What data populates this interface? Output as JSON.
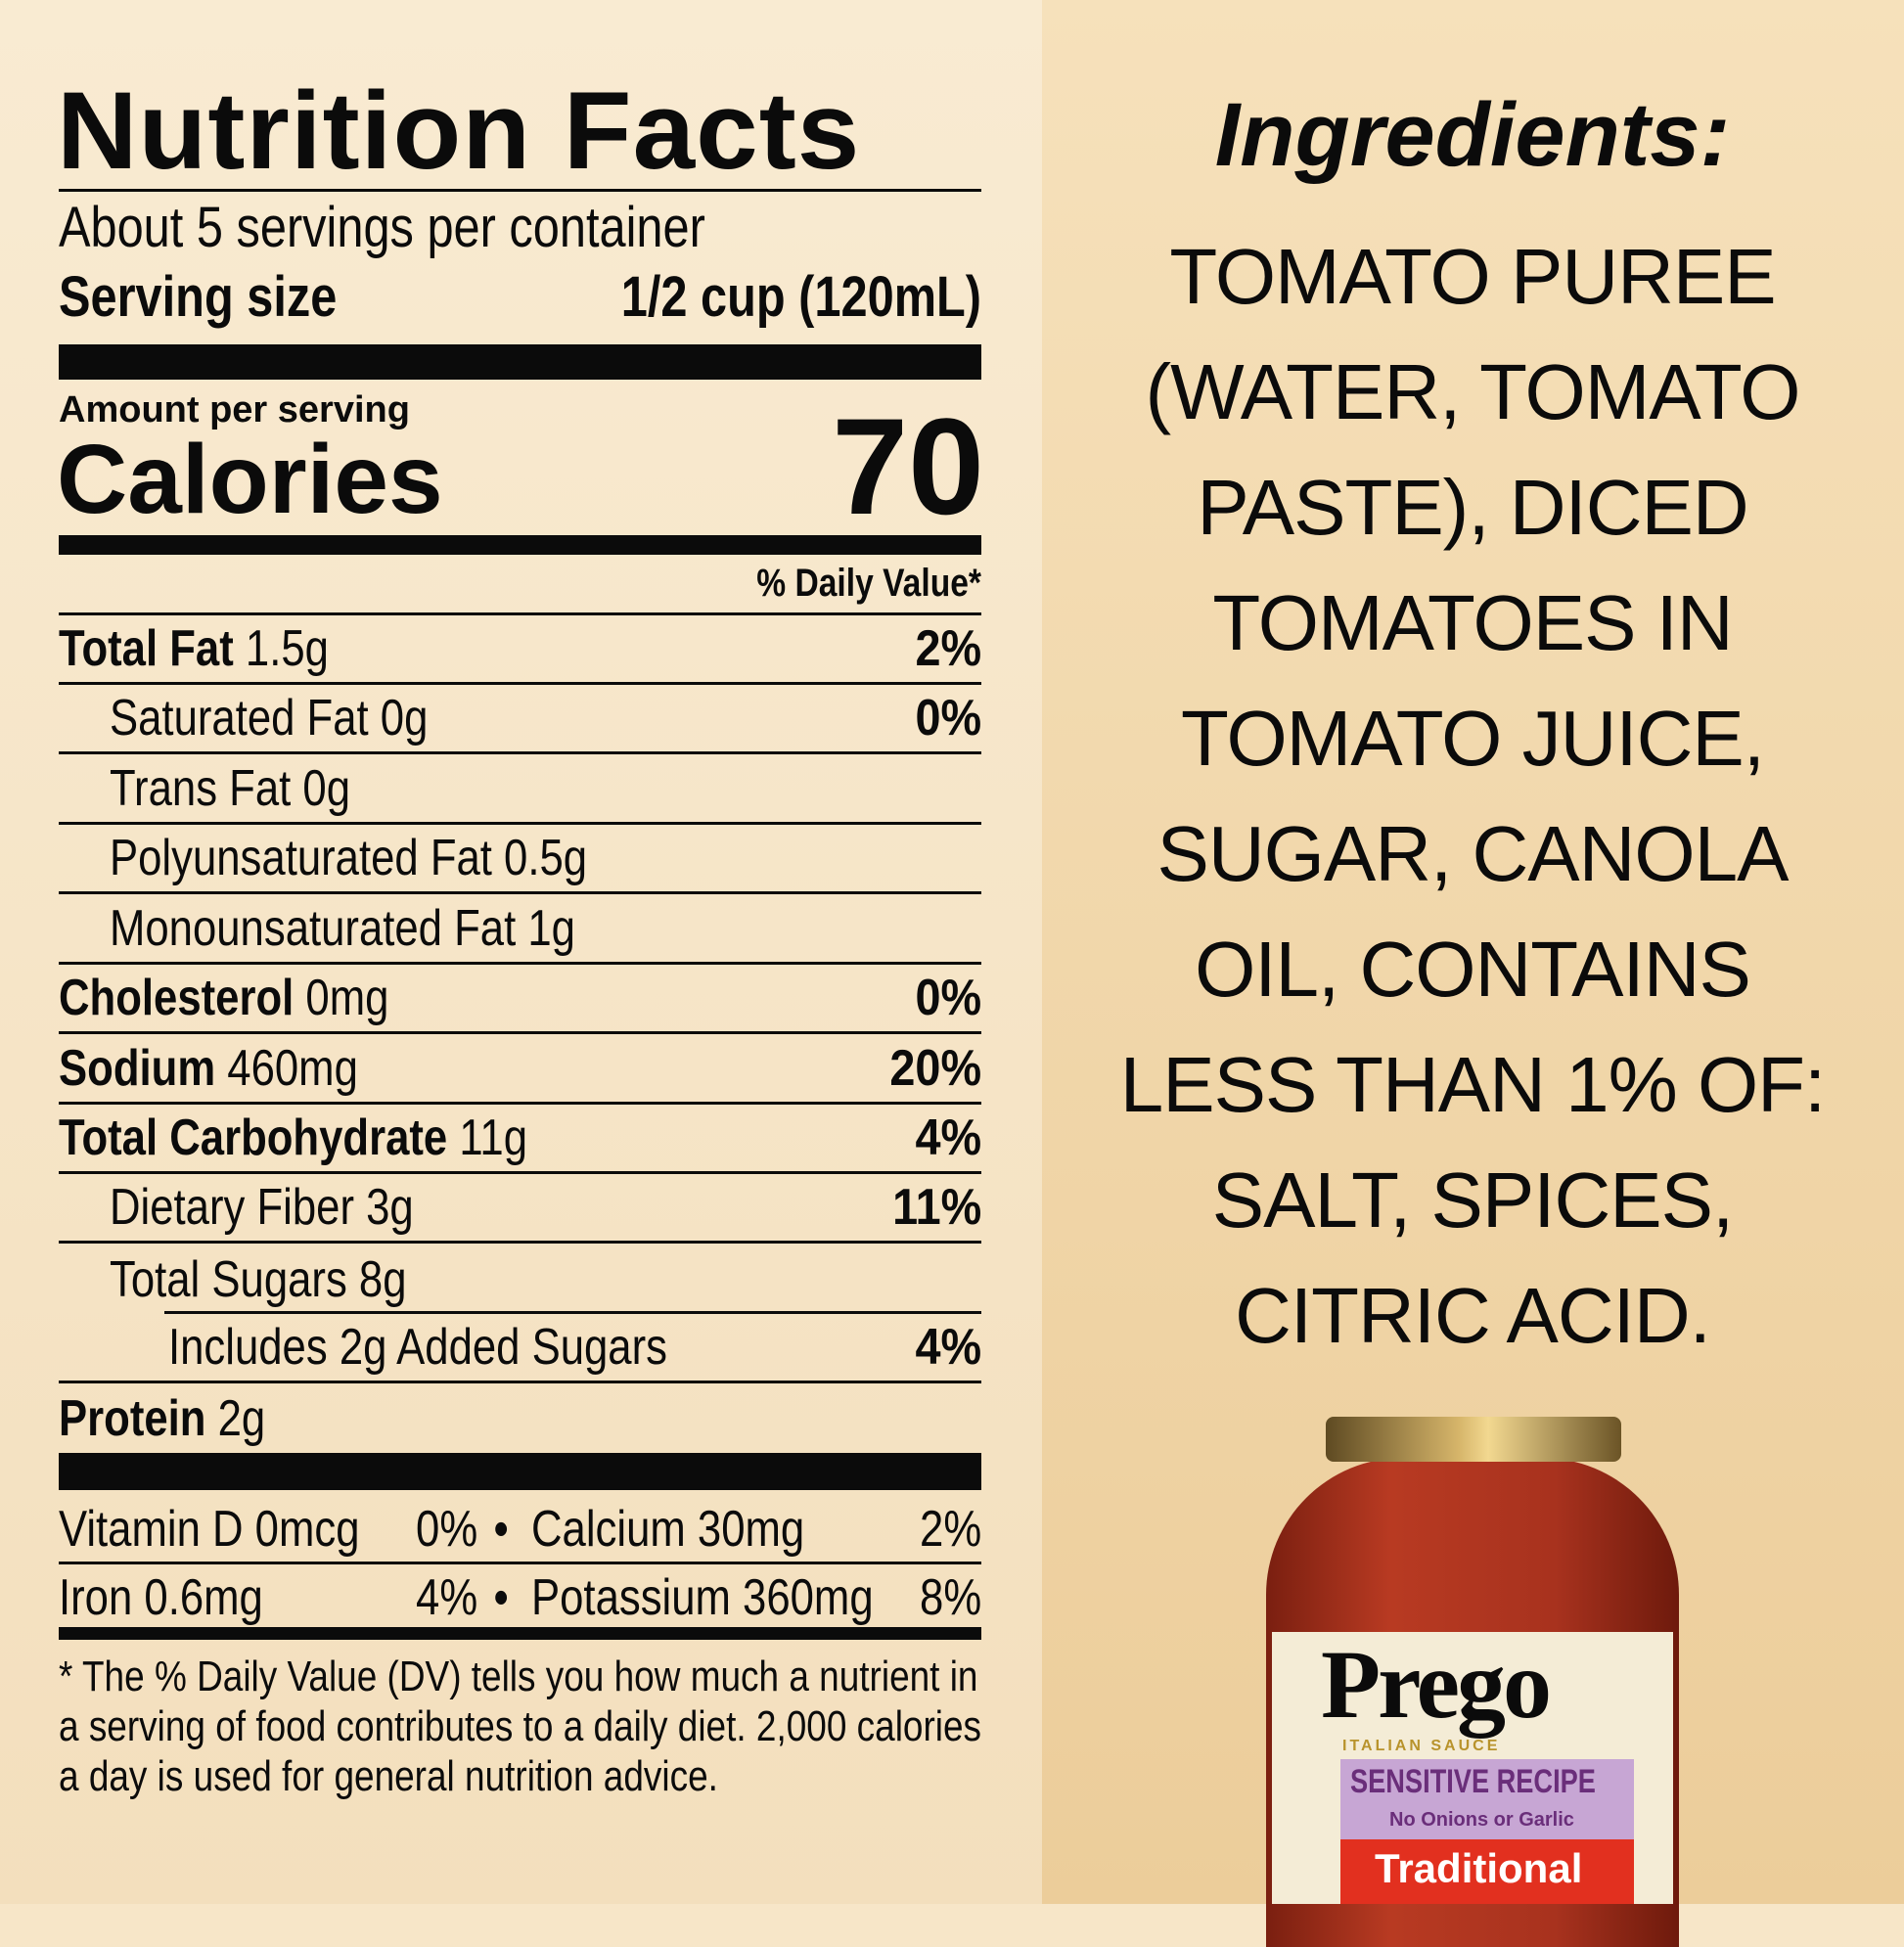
{
  "nutrition": {
    "title": "Nutrition Facts",
    "servings": "About 5 servings per container",
    "serving_size_label": "Serving size",
    "serving_size_value": "1/2 cup (120mL)",
    "amount_per_serving": "Amount per serving",
    "calories_label": "Calories",
    "calories_value": "70",
    "dv_header": "% Daily Value*",
    "rows": [
      {
        "name": "Total Fat",
        "amount": "1.5g",
        "dv": "2%"
      },
      {
        "name": "Saturated Fat 0g",
        "amount": "",
        "dv": "0%"
      },
      {
        "name": "Trans Fat 0g",
        "amount": "",
        "dv": ""
      },
      {
        "name": "Polyunsaturated Fat 0.5g",
        "amount": "",
        "dv": ""
      },
      {
        "name": "Monounsaturated Fat 1g",
        "amount": "",
        "dv": ""
      },
      {
        "name": "Cholesterol",
        "amount": "0mg",
        "dv": "0%"
      },
      {
        "name": "Sodium",
        "amount": "460mg",
        "dv": "20%"
      },
      {
        "name": "Total Carbohydrate",
        "amount": "11g",
        "dv": "4%"
      },
      {
        "name": "Dietary Fiber 3g",
        "amount": "",
        "dv": "11%"
      },
      {
        "name": "Total Sugars 8g",
        "amount": "",
        "dv": ""
      },
      {
        "name": "Includes 2g Added Sugars",
        "amount": "",
        "dv": "4%"
      },
      {
        "name": "Protein",
        "amount": "2g",
        "dv": ""
      }
    ],
    "vitamins": [
      {
        "left": "Vitamin D 0mcg",
        "left_dv": "0%",
        "bullet": "•",
        "right": "Calcium 30mg",
        "right_dv": "2%"
      },
      {
        "left": "Iron 0.6mg",
        "left_dv": "4%",
        "bullet": "•",
        "right": "Potassium 360mg",
        "right_dv": "8%"
      }
    ],
    "footnote": [
      "* The % Daily Value (DV) tells you how much a nutrient in",
      "a serving of food contributes to a daily diet. 2,000 calories",
      "a day is used for general nutrition advice."
    ]
  },
  "ingredients": {
    "title": "Ingredients:",
    "lines": [
      "TOMATO PUREE",
      "(WATER, TOMATO",
      "PASTE), DICED",
      "TOMATOES IN",
      "TOMATO JUICE,",
      "SUGAR, CANOLA",
      "OIL, CONTAINS",
      "LESS THAN 1% OF:",
      "SALT, SPICES,",
      "CITRIC ACID."
    ]
  },
  "jar": {
    "brand": "Prego",
    "sub": "ITALIAN SAUCE",
    "recipe": "SENSITIVE RECIPE",
    "recipe_note": "No Onions or Garlic",
    "variety": "Traditional",
    "colors": {
      "sauce": "#a8321e",
      "lid": "#b8954a",
      "label": "#f4ecd6",
      "purple": "#c7a6d4",
      "red": "#e2301f"
    }
  }
}
